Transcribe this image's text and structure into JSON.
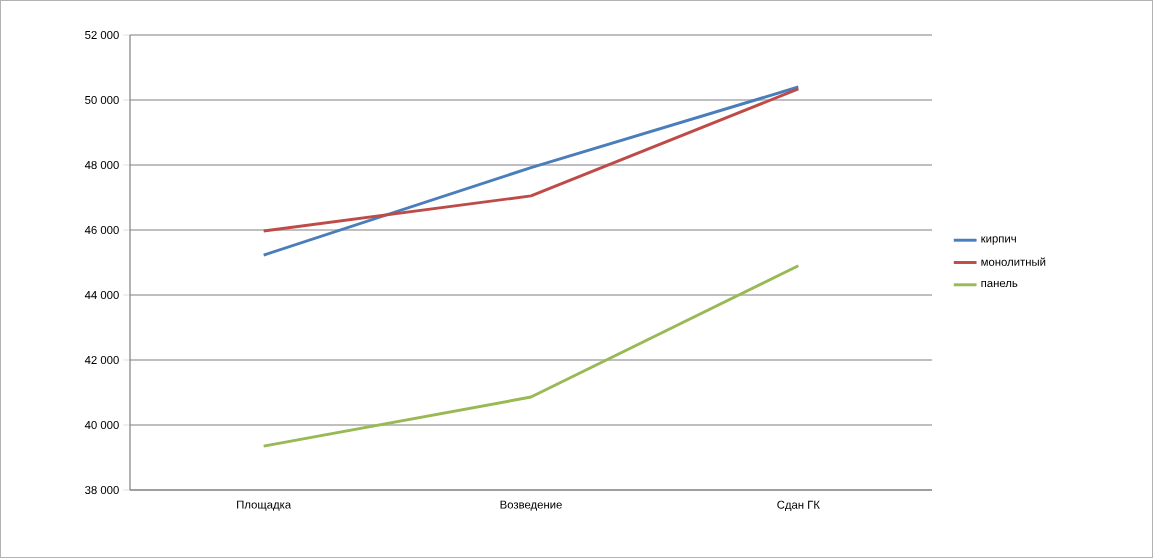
{
  "chart_data": {
    "type": "line",
    "categories": [
      "Площадка",
      "Возведение",
      "Сдан ГК"
    ],
    "series": [
      {
        "name": "кирпич",
        "color": "#4a7ebb",
        "values": [
          45230,
          47920,
          50400
        ]
      },
      {
        "name": "монолитный",
        "color": "#be4b48",
        "values": [
          45970,
          47050,
          50340
        ]
      },
      {
        "name": "панель",
        "color": "#98b954",
        "values": [
          39350,
          40860,
          44900
        ]
      }
    ],
    "ylim": [
      38000,
      52000
    ],
    "yticks": [
      {
        "value": 38000,
        "label": "38 000"
      },
      {
        "value": 40000,
        "label": "40 000"
      },
      {
        "value": 42000,
        "label": "42 000"
      },
      {
        "value": 44000,
        "label": "44 000"
      },
      {
        "value": 46000,
        "label": "46 000"
      },
      {
        "value": 48000,
        "label": "48 000"
      },
      {
        "value": 50000,
        "label": "50 000"
      },
      {
        "value": 52000,
        "label": "52 000"
      }
    ],
    "grid": "y",
    "legend": "right",
    "marker": "none",
    "line_style": "solid"
  }
}
